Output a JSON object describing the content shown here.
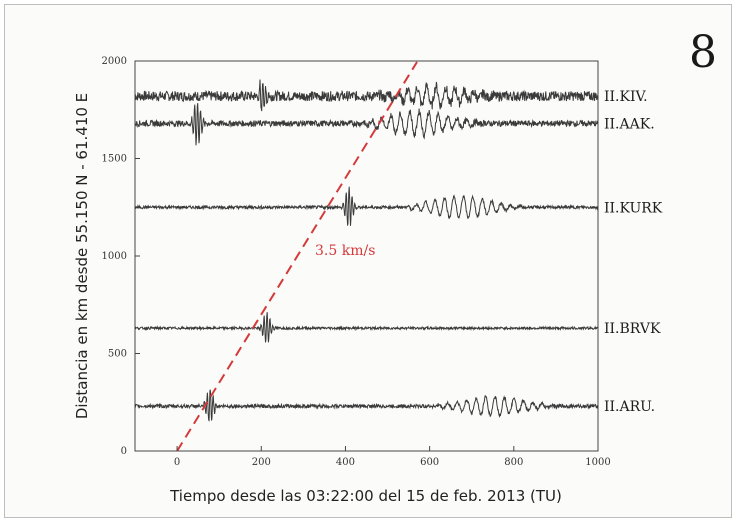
{
  "figure": {
    "panel_number": "8"
  },
  "chart_data": {
    "type": "line",
    "xlabel": "Tiempo desde las 03:22:00 del 15 de feb. 2013 (TU)",
    "ylabel": "Distancia en km desde 55.150 N - 61.410 E",
    "xlim": [
      -100,
      1000
    ],
    "ylim": [
      0,
      2000
    ],
    "x_ticks": [
      0,
      200,
      400,
      600,
      800,
      1000
    ],
    "y_ticks": [
      0,
      500,
      1000,
      1500,
      2000
    ],
    "grid": false,
    "stations": [
      {
        "name": "II.KIV.",
        "distance": 1820,
        "p_arrival": 195,
        "s_arrival": 520,
        "peak": 18,
        "noise": 5
      },
      {
        "name": "II.AAK.",
        "distance": 1680,
        "p_arrival": 40,
        "s_arrival": 480,
        "peak": 22,
        "noise": 3
      },
      {
        "name": "II.KURK",
        "distance": 1250,
        "p_arrival": 400,
        "s_arrival": 585,
        "peak": 20,
        "noise": 1.5
      },
      {
        "name": "II.BRVK",
        "distance": 630,
        "p_arrival": 205,
        "s_arrival": 0,
        "peak": 16,
        "noise": 1.2
      },
      {
        "name": "II.ARU.",
        "distance": 230,
        "p_arrival": 70,
        "s_arrival": 660,
        "peak": 17,
        "noise": 1.8
      }
    ],
    "reference_line": {
      "label": "3.5 km/s",
      "x": [
        0,
        570
      ],
      "y": [
        0,
        1995
      ],
      "color": "#d43a3a"
    },
    "colors": {
      "trace": "#3a3a3a",
      "reference": "#d43a3a"
    }
  }
}
